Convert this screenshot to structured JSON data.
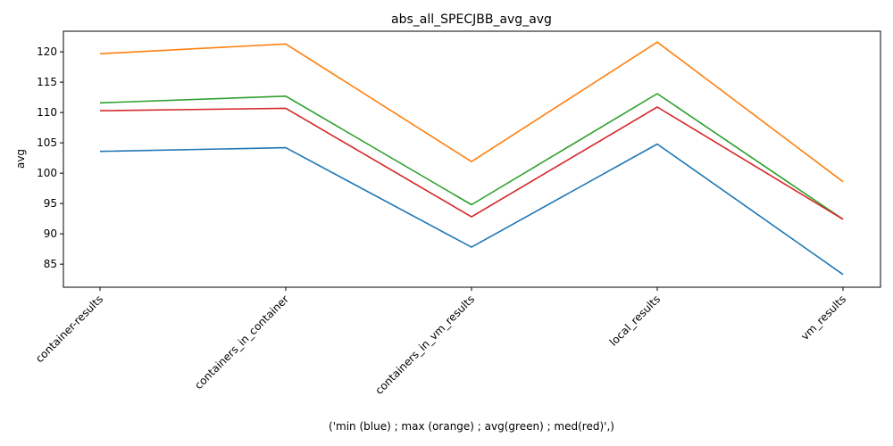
{
  "chart_data": {
    "type": "line",
    "title": "abs_all_SPECJBB_avg_avg",
    "xlabel": "('min (blue) ; max (orange) ; avg(green) ; med(red)',)",
    "ylabel": "avg",
    "categories": [
      "container-results",
      "containers_in_container",
      "containers_in_vm_results",
      "local_results",
      "vm_results"
    ],
    "ylim": [
      81.2,
      123.4
    ],
    "yticks": [
      85,
      90,
      95,
      100,
      105,
      110,
      115,
      120
    ],
    "grid": false,
    "series": [
      {
        "color": "#1f77b4",
        "values": [
          103.6,
          104.2,
          87.8,
          104.8,
          83.3
        ]
      },
      {
        "color": "#ff7f0e",
        "values": [
          119.7,
          121.3,
          101.9,
          121.6,
          98.6
        ]
      },
      {
        "color": "#2ca02c",
        "values": [
          111.6,
          112.7,
          94.8,
          113.1,
          92.4
        ]
      },
      {
        "color": "#d62728",
        "values": [
          110.3,
          110.7,
          92.8,
          110.9,
          92.4
        ]
      }
    ]
  }
}
